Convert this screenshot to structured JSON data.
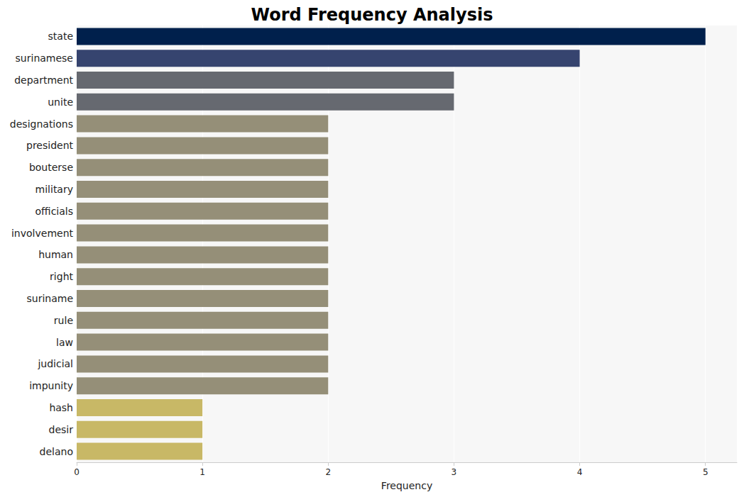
{
  "chart_data": {
    "type": "bar",
    "title": "Word Frequency Analysis",
    "orientation": "horizontal",
    "x_label": "Frequency",
    "categories": [
      "state",
      "surinamese",
      "department",
      "unite",
      "designations",
      "president",
      "bouterse",
      "military",
      "officials",
      "involvement",
      "human",
      "right",
      "suriname",
      "rule",
      "law",
      "judicial",
      "impunity",
      "hash",
      "desir",
      "delano"
    ],
    "values": [
      5,
      4,
      3,
      3,
      2,
      2,
      2,
      2,
      2,
      2,
      2,
      2,
      2,
      2,
      2,
      2,
      2,
      1,
      1,
      1
    ],
    "colors": [
      "#00204c",
      "#36446f",
      "#666970",
      "#666970",
      "#958f78",
      "#958f78",
      "#958f78",
      "#958f78",
      "#958f78",
      "#958f78",
      "#958f78",
      "#958f78",
      "#958f78",
      "#958f78",
      "#958f78",
      "#958f78",
      "#958f78",
      "#c8b866",
      "#c8b866",
      "#c8b866"
    ],
    "xlim": [
      0,
      5.25
    ],
    "xticks": [
      0,
      1,
      2,
      3,
      4,
      5
    ],
    "grid": true
  }
}
